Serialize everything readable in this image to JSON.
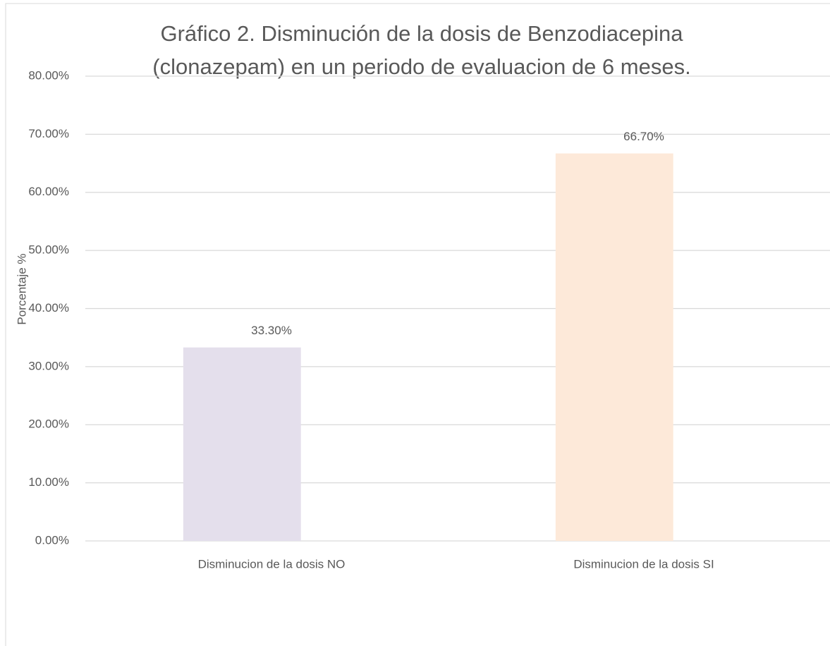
{
  "chart_data": {
    "type": "bar",
    "title": [
      "Gráfico 2. Disminución de la dosis de Benzodiacepina",
      "(clonazepam) en un periodo de evaluacion de 6 meses."
    ],
    "y_label": "Porcentaje %",
    "categories": [
      "Disminucion de la dosis NO",
      "Disminucion de la dosis SI"
    ],
    "values": [
      33.3,
      66.7
    ],
    "value_labels": [
      "33.30%",
      "66.70%"
    ],
    "colors": [
      "#e4dfec",
      "#fde9d9"
    ],
    "ylim": [
      0,
      80
    ],
    "yticks": [
      {
        "value": 0,
        "label": "0.00%"
      },
      {
        "value": 10,
        "label": "10.00%"
      },
      {
        "value": 20,
        "label": "20.00%"
      },
      {
        "value": 30,
        "label": "30.00%"
      },
      {
        "value": 40,
        "label": "40.00%"
      },
      {
        "value": 50,
        "label": "50.00%"
      },
      {
        "value": 60,
        "label": "60.00%"
      },
      {
        "value": 70,
        "label": "70.00%"
      },
      {
        "value": 80,
        "label": "80.00%"
      }
    ],
    "grid": true
  }
}
